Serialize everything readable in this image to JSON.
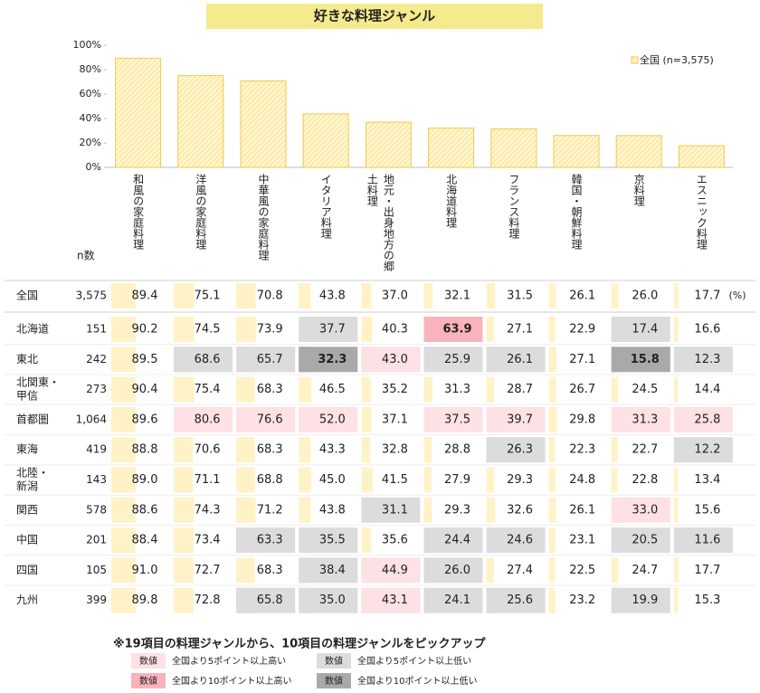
{
  "chart_data": {
    "type": "bar",
    "title": "好きな料理ジャンル",
    "categories": [
      "和風の家庭料理",
      "洋風の家庭料理",
      "中華風の家庭料理",
      "イタリア料理",
      "地元・出身地方の郷土料理",
      "北海道料理",
      "フランス料理",
      "韓国・朝鮮料理",
      "京料理",
      "エスニック料理"
    ],
    "series": [
      {
        "name": "全国 (n=3,575)",
        "color": "#f2c94c",
        "values": [
          89.4,
          75.1,
          70.8,
          43.8,
          37.0,
          32.1,
          31.5,
          26.1,
          26.0,
          17.7
        ]
      }
    ],
    "ylim": [
      0,
      100
    ],
    "yticks": [
      {
        "value": 0,
        "label": "0%"
      },
      {
        "value": 20,
        "label": "20%"
      },
      {
        "value": 40,
        "label": "40%"
      },
      {
        "value": 60,
        "label": "60%"
      },
      {
        "value": 80,
        "label": "80%"
      },
      {
        "value": 100,
        "label": "100%"
      }
    ],
    "grid": false,
    "legend": "top-right"
  },
  "table": {
    "n_header": "n数",
    "unit": "(%)",
    "rows": [
      {
        "label": [
          "全国"
        ],
        "n": "3,575",
        "values": [
          "89.4",
          "75.1",
          "70.8",
          "43.8",
          "37.0",
          "32.1",
          "31.5",
          "26.1",
          "26.0",
          "17.7"
        ]
      },
      {
        "label": [
          "北海道"
        ],
        "n": "151",
        "values": [
          "90.2",
          "74.5",
          "73.9",
          "37.7",
          "40.3",
          "63.9",
          "27.1",
          "22.9",
          "17.4",
          "16.6"
        ]
      },
      {
        "label": [
          "東北"
        ],
        "n": "242",
        "values": [
          "89.5",
          "68.6",
          "65.7",
          "32.3",
          "43.0",
          "25.9",
          "26.1",
          "27.1",
          "15.8",
          "12.3"
        ]
      },
      {
        "label": [
          "北関東・",
          "甲信"
        ],
        "n": "273",
        "values": [
          "90.4",
          "75.4",
          "68.3",
          "46.5",
          "35.2",
          "31.3",
          "28.7",
          "26.7",
          "24.5",
          "14.4"
        ]
      },
      {
        "label": [
          "首都圏"
        ],
        "n": "1,064",
        "values": [
          "89.6",
          "80.6",
          "76.6",
          "52.0",
          "37.1",
          "37.5",
          "39.7",
          "29.8",
          "31.3",
          "25.8"
        ]
      },
      {
        "label": [
          "東海"
        ],
        "n": "419",
        "values": [
          "88.8",
          "70.6",
          "68.3",
          "43.3",
          "32.8",
          "28.8",
          "26.3",
          "22.3",
          "22.7",
          "12.2"
        ]
      },
      {
        "label": [
          "北陸・",
          "新潟"
        ],
        "n": "143",
        "values": [
          "89.0",
          "71.1",
          "68.8",
          "45.0",
          "41.5",
          "27.9",
          "29.3",
          "24.8",
          "22.8",
          "13.4"
        ]
      },
      {
        "label": [
          "関西"
        ],
        "n": "578",
        "values": [
          "88.6",
          "74.3",
          "71.2",
          "43.8",
          "31.1",
          "29.3",
          "32.6",
          "26.1",
          "33.0",
          "15.6"
        ]
      },
      {
        "label": [
          "中国"
        ],
        "n": "201",
        "values": [
          "88.4",
          "73.4",
          "63.3",
          "35.5",
          "35.6",
          "24.4",
          "24.6",
          "23.1",
          "20.5",
          "11.6"
        ]
      },
      {
        "label": [
          "四国"
        ],
        "n": "105",
        "values": [
          "91.0",
          "72.7",
          "68.3",
          "38.4",
          "44.9",
          "26.0",
          "27.4",
          "22.5",
          "24.7",
          "17.7"
        ]
      },
      {
        "label": [
          "九州"
        ],
        "n": "399",
        "values": [
          "89.8",
          "72.8",
          "65.8",
          "35.0",
          "43.1",
          "24.1",
          "25.6",
          "23.2",
          "19.9",
          "15.3"
        ]
      }
    ]
  },
  "note": "※19項目の料理ジャンルから、10項目の料理ジャンルをピックアップ",
  "highlight_legend": [
    {
      "sample": "数値",
      "text": "全国より5ポイント以上高い",
      "color": "#fde1e4"
    },
    {
      "sample": "数値",
      "text": "全国より10ポイント以上高い",
      "color": "#f9b3bc"
    },
    {
      "sample": "数値",
      "text": "全国より5ポイント以上低い",
      "color": "#dcdcdc"
    },
    {
      "sample": "数値",
      "text": "全国より10ポイント以上低い",
      "color": "#a9a9a9"
    }
  ]
}
